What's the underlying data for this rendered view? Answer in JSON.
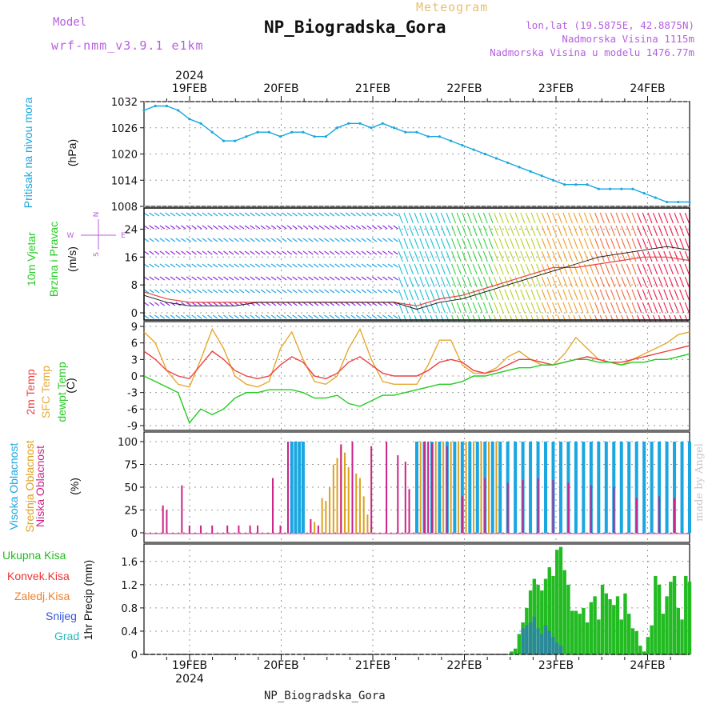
{
  "header": {
    "title": "NP_Biogradska_Gora",
    "subtitle": "Meteogram",
    "model_label": "Model",
    "model_name": "wrf-nmm_v3.9.1  e1km",
    "coords": "lon,lat (19.5875E, 42.8875N)",
    "elevation": "Nadmorska Visina 1115m",
    "model_elevation": "Nadmorska Visina u modelu 1476.77m",
    "footer": "NP_Biogradska_Gora",
    "credit": "made by Angel"
  },
  "colors": {
    "pressure": "#1aa6e0",
    "temp2m": "#ee4040",
    "sfc": "#e6a830",
    "dewpt": "#22cc22",
    "high_cloud": "#1aa6e0",
    "mid_cloud": "#dda020",
    "low_cloud": "#cc2288",
    "total_precip": "#22bb22",
    "conv_precip": "#ee3333",
    "frozen_precip": "#f08030",
    "snow": "#3355dd",
    "graupel": "#22bbbb",
    "wind_label": "#22cc22",
    "wind_dir": "#b65fe0"
  },
  "time_axis": {
    "year": "2024",
    "day_labels": [
      "19FEB",
      "20FEB",
      "21FEB",
      "22FEB",
      "23FEB",
      "24FEB"
    ]
  },
  "panels": {
    "pressure": {
      "label": "Pritisak na nivou mora",
      "unit": "(hPa)"
    },
    "wind": {
      "label1": "10m Vjetar",
      "label2": "Brzina i Pravac",
      "unit": "(m/s)",
      "dir_n": "N",
      "dir_s": "S",
      "dir_e": "E",
      "dir_w": "W"
    },
    "temp": {
      "label1": "2m Temp",
      "label2": "SFC Temp",
      "label3": "dewpt Temp",
      "unit": "(C)"
    },
    "cloud": {
      "label1": "Visoka Oblacnost",
      "label2": "Srednja Oblacnost",
      "label3": "Niska Oblacnost",
      "unit": "(%)"
    },
    "precip": {
      "l1": "Ukupna Kisa",
      "l2": "Konvek.Kisa",
      "l3": "Zaledj.Kisa",
      "l4": "Snijeg",
      "l5": "Grad",
      "unit": "1hr Precip (mm)"
    }
  },
  "chart_data": [
    {
      "type": "line",
      "name": "pressure",
      "ylim": [
        1008,
        1032
      ],
      "yticks": [
        "1008",
        "1014",
        "1020",
        "1026",
        "1032"
      ],
      "x_hours": [
        0,
        3,
        6,
        9,
        12,
        15,
        18,
        21,
        24,
        27,
        30,
        33,
        36,
        39,
        42,
        45,
        48,
        51,
        54,
        57,
        60,
        63,
        66,
        69,
        72,
        75,
        78,
        81,
        84,
        87,
        90,
        93,
        96,
        99,
        102,
        105,
        108,
        111,
        114,
        117,
        120,
        123,
        126,
        129,
        132,
        135,
        138,
        141,
        144
      ],
      "series": [
        {
          "values": [
            1030,
            1031,
            1031,
            1030,
            1028,
            1027,
            1025,
            1023,
            1023,
            1024,
            1025,
            1025,
            1024,
            1025,
            1025,
            1024,
            1024,
            1026,
            1027,
            1027,
            1026,
            1027,
            1026,
            1025,
            1025,
            1024,
            1024,
            1023,
            1022,
            1021,
            1020,
            1019,
            1018,
            1017,
            1016,
            1015,
            1014,
            1013,
            1013,
            1013,
            1012,
            1012,
            1012,
            1012,
            1011,
            1010,
            1009,
            1009,
            1009
          ]
        }
      ]
    },
    {
      "type": "line",
      "name": "wind",
      "ylim": [
        0,
        28
      ],
      "yticks": [
        "0",
        "8",
        "16",
        "24"
      ],
      "x_hours": [
        0,
        6,
        12,
        18,
        24,
        30,
        36,
        42,
        48,
        54,
        60,
        66,
        72,
        78,
        84,
        90,
        96,
        102,
        108,
        114,
        120,
        126,
        132,
        138,
        144
      ],
      "series": [
        {
          "values": [
            6,
            4,
            3,
            3,
            3,
            3,
            3,
            3,
            3,
            3,
            3,
            3,
            2,
            4,
            5,
            7,
            9,
            11,
            13,
            13,
            14,
            15,
            16,
            16,
            15
          ]
        },
        {
          "values": [
            5,
            3,
            2,
            2,
            2,
            3,
            3,
            3,
            3,
            3,
            3,
            3,
            1,
            3,
            4,
            6,
            8,
            10,
            12,
            14,
            16,
            17,
            18,
            19,
            18
          ]
        }
      ]
    },
    {
      "type": "line",
      "name": "temperature",
      "ylim": [
        -9,
        9
      ],
      "yticks": [
        "-9",
        "-6",
        "-3",
        "0",
        "3",
        "6",
        "9"
      ],
      "x_hours": [
        0,
        3,
        6,
        9,
        12,
        15,
        18,
        21,
        24,
        27,
        30,
        33,
        36,
        39,
        42,
        45,
        48,
        51,
        54,
        57,
        60,
        63,
        66,
        69,
        72,
        75,
        78,
        81,
        84,
        87,
        90,
        93,
        96,
        99,
        102,
        105,
        108,
        111,
        114,
        117,
        120,
        123,
        126,
        129,
        132,
        135,
        138,
        141,
        144
      ],
      "series": [
        {
          "values": [
            4.5,
            3,
            1,
            0,
            -0.5,
            2,
            4.5,
            3,
            1,
            0,
            -0.5,
            0,
            2,
            3.5,
            2.5,
            0,
            -0.5,
            0.5,
            2.5,
            3.5,
            2,
            0.5,
            0,
            0,
            0,
            1,
            2.5,
            3,
            2.5,
            1,
            0.5,
            1,
            2,
            3,
            3,
            2.5,
            2,
            2.5,
            3,
            3.5,
            3,
            2.5,
            2.5,
            3,
            3.5,
            4,
            4.5,
            5,
            5.5
          ]
        },
        {
          "values": [
            8,
            6,
            1,
            -1.5,
            -2,
            3,
            8.5,
            5,
            0,
            -1.5,
            -2,
            -1,
            5,
            8,
            3,
            -1,
            -1.5,
            0,
            5,
            8.5,
            3,
            -1,
            -1.5,
            -1.5,
            -1.5,
            2,
            6.5,
            6.5,
            2,
            0.5,
            0.5,
            1.5,
            3.5,
            4.5,
            3,
            2,
            2,
            4,
            7,
            5,
            3,
            2.5,
            2,
            3,
            4,
            5,
            6,
            7.5,
            8
          ]
        },
        {
          "values": [
            0,
            -1,
            -2,
            -3,
            -8.5,
            -6,
            -7,
            -6,
            -4,
            -3,
            -3,
            -2.5,
            -2.5,
            -2.5,
            -3,
            -4,
            -4,
            -3.5,
            -5,
            -5.5,
            -4.5,
            -3.5,
            -3.5,
            -3,
            -2.5,
            -2,
            -1.5,
            -1.5,
            -1,
            0,
            0,
            0.5,
            1,
            1.5,
            1.5,
            2,
            2,
            2.5,
            3,
            3,
            2.5,
            2.5,
            2,
            2.5,
            2.5,
            3,
            3,
            3.5,
            4
          ]
        }
      ]
    },
    {
      "type": "bar",
      "name": "cloud",
      "ylim": [
        0,
        100
      ],
      "yticks": [
        "0",
        "25",
        "50",
        "75",
        "100"
      ],
      "series": [
        {
          "values": [
            [
              39,
              100
            ],
            [
              40,
              100
            ],
            [
              41,
              100
            ],
            [
              42,
              100
            ],
            [
              72,
              100
            ],
            [
              74,
              100
            ],
            [
              76,
              100
            ],
            [
              78,
              100
            ],
            [
              80,
              100
            ],
            [
              82,
              100
            ],
            [
              84,
              100
            ],
            [
              86,
              100
            ],
            [
              88,
              100
            ],
            [
              90,
              100
            ],
            [
              92,
              100
            ],
            [
              94,
              100
            ],
            [
              96,
              100
            ],
            [
              98,
              100
            ],
            [
              100,
              100
            ],
            [
              102,
              100
            ],
            [
              104,
              100
            ],
            [
              106,
              100
            ],
            [
              108,
              100
            ],
            [
              110,
              100
            ],
            [
              112,
              100
            ],
            [
              114,
              100
            ],
            [
              116,
              100
            ],
            [
              118,
              100
            ],
            [
              120,
              100
            ],
            [
              122,
              100
            ],
            [
              124,
              100
            ],
            [
              126,
              100
            ],
            [
              128,
              100
            ],
            [
              130,
              100
            ],
            [
              132,
              100
            ],
            [
              134,
              100
            ],
            [
              136,
              100
            ],
            [
              138,
              100
            ],
            [
              140,
              100
            ],
            [
              142,
              100
            ],
            [
              144,
              100
            ]
          ]
        },
        {
          "values": [
            [
              44,
              10
            ],
            [
              45,
              12
            ],
            [
              47,
              38
            ],
            [
              48,
              35
            ],
            [
              49,
              50
            ],
            [
              50,
              75
            ],
            [
              51,
              82
            ],
            [
              52,
              95
            ],
            [
              53,
              88
            ],
            [
              54,
              72
            ],
            [
              55,
              65
            ],
            [
              56,
              65
            ],
            [
              57,
              60
            ],
            [
              58,
              40
            ],
            [
              59,
              20
            ],
            [
              60,
              8
            ],
            [
              73,
              100
            ],
            [
              75,
              100
            ],
            [
              77,
              100
            ],
            [
              79,
              100
            ],
            [
              81,
              100
            ],
            [
              83,
              100
            ],
            [
              85,
              100
            ],
            [
              87,
              100
            ],
            [
              89,
              100
            ],
            [
              91,
              100
            ],
            [
              93,
              100
            ]
          ]
        },
        {
          "values": [
            [
              5,
              30
            ],
            [
              6,
              25
            ],
            [
              10,
              52
            ],
            [
              12,
              8
            ],
            [
              15,
              8
            ],
            [
              18,
              8
            ],
            [
              22,
              8
            ],
            [
              25,
              8
            ],
            [
              28,
              8
            ],
            [
              30,
              8
            ],
            [
              34,
              60
            ],
            [
              36,
              8
            ],
            [
              38,
              100
            ],
            [
              44,
              15
            ],
            [
              46,
              8
            ],
            [
              52,
              97
            ],
            [
              55,
              100
            ],
            [
              60,
              95
            ],
            [
              64,
              100
            ],
            [
              67,
              85
            ],
            [
              69,
              78
            ],
            [
              70,
              48
            ],
            [
              74,
              100
            ],
            [
              75,
              100
            ],
            [
              76,
              98
            ],
            [
              80,
              95
            ],
            [
              84,
              40
            ],
            [
              90,
              60
            ],
            [
              96,
              55
            ],
            [
              100,
              58
            ],
            [
              104,
              60
            ],
            [
              108,
              58
            ],
            [
              112,
              55
            ],
            [
              118,
              52
            ],
            [
              124,
              50
            ],
            [
              130,
              38
            ],
            [
              136,
              40
            ],
            [
              140,
              38
            ]
          ]
        }
      ]
    },
    {
      "type": "bar",
      "name": "precipitation",
      "ylim": [
        0,
        1.9
      ],
      "yticks": [
        "0",
        "0.4",
        "0.8",
        "1.2",
        "1.6"
      ],
      "series": [
        {
          "values": [
            [
              97,
              0.05
            ],
            [
              98,
              0.1
            ],
            [
              99,
              0.35
            ],
            [
              100,
              0.55
            ],
            [
              101,
              0.8
            ],
            [
              102,
              1.1
            ],
            [
              103,
              1.3
            ],
            [
              104,
              1.2
            ],
            [
              105,
              1.1
            ],
            [
              106,
              1.3
            ],
            [
              107,
              1.5
            ],
            [
              108,
              1.35
            ],
            [
              109,
              1.8
            ],
            [
              110,
              1.85
            ],
            [
              111,
              1.45
            ],
            [
              112,
              1.2
            ],
            [
              113,
              0.75
            ],
            [
              114,
              0.75
            ],
            [
              115,
              0.7
            ],
            [
              116,
              0.8
            ],
            [
              117,
              0.55
            ],
            [
              118,
              0.9
            ],
            [
              119,
              1.0
            ],
            [
              120,
              0.6
            ],
            [
              121,
              1.2
            ],
            [
              122,
              1.05
            ],
            [
              123,
              0.95
            ],
            [
              124,
              0.85
            ],
            [
              125,
              1.0
            ],
            [
              126,
              0.6
            ],
            [
              127,
              1.05
            ],
            [
              128,
              0.7
            ],
            [
              129,
              0.45
            ],
            [
              130,
              0.4
            ],
            [
              131,
              0.15
            ],
            [
              132,
              0.05
            ],
            [
              133,
              0.3
            ],
            [
              134,
              0.5
            ],
            [
              135,
              1.35
            ],
            [
              136,
              1.2
            ],
            [
              137,
              0.7
            ],
            [
              138,
              1.0
            ],
            [
              139,
              1.25
            ],
            [
              140,
              1.35
            ],
            [
              141,
              0.8
            ],
            [
              142,
              0.6
            ],
            [
              143,
              1.35
            ],
            [
              144,
              1.25
            ]
          ]
        },
        {
          "values": [
            [
              100,
              0.45
            ],
            [
              101,
              0.5
            ],
            [
              102,
              0.55
            ],
            [
              103,
              0.65
            ],
            [
              104,
              0.45
            ],
            [
              105,
              0.35
            ],
            [
              106,
              0.5
            ],
            [
              107,
              0.4
            ],
            [
              108,
              0.3
            ],
            [
              109,
              0.2
            ],
            [
              110,
              0.15
            ]
          ]
        }
      ]
    }
  ]
}
